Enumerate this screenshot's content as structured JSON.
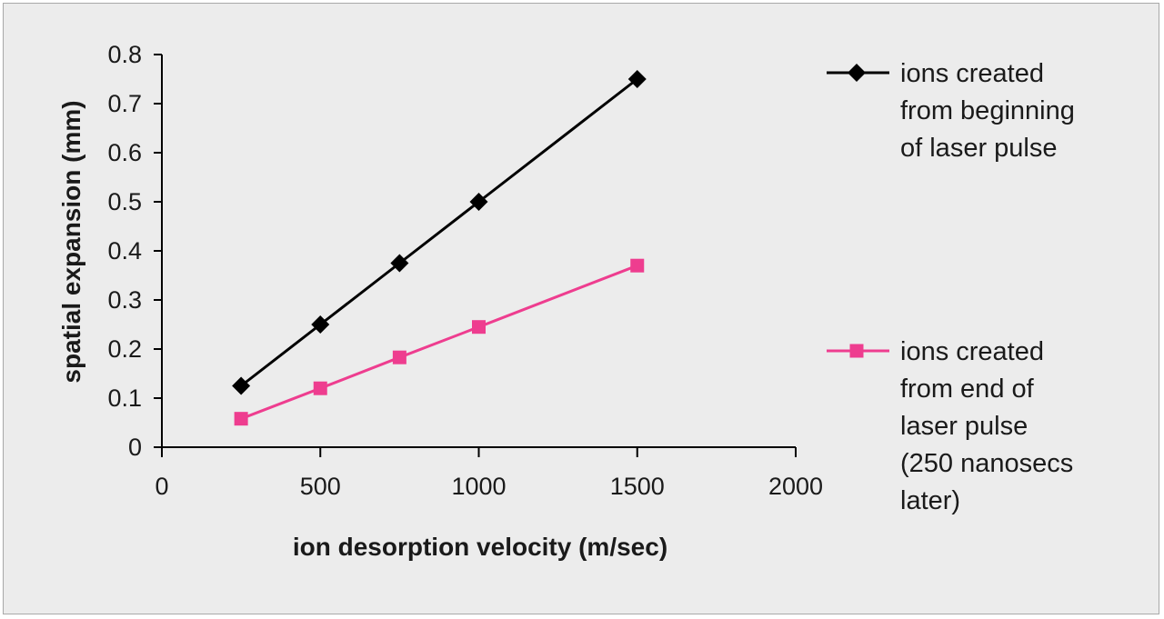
{
  "chart_data": {
    "type": "line",
    "title": "",
    "xlabel": "ion desorption velocity (m/sec)",
    "ylabel": "spatial expansion (mm)",
    "xlim": [
      0,
      2000
    ],
    "ylim": [
      0,
      0.8
    ],
    "x_ticks": [
      "0",
      "500",
      "1000",
      "1500",
      "2000"
    ],
    "y_ticks": [
      "0",
      "0.1",
      "0.2",
      "0.3",
      "0.4",
      "0.5",
      "0.6",
      "0.7",
      "0.8"
    ],
    "grid": false,
    "legend_position": "right",
    "series": [
      {
        "name": "ions created from beginning of laser pulse",
        "legend_lines": [
          "ions created",
          "from beginning",
          "of laser pulse"
        ],
        "color": "#000000",
        "marker": "diamond",
        "x": [
          250,
          500,
          750,
          1000,
          1500
        ],
        "values": [
          0.125,
          0.25,
          0.375,
          0.5,
          0.75
        ]
      },
      {
        "name": "ions created from end of laser pulse (250 nanosecs later)",
        "legend_lines": [
          "ions created",
          "from end of",
          "laser pulse",
          "(250 nanosecs",
          "later)"
        ],
        "color": "#ee3d8f",
        "marker": "square",
        "x": [
          250,
          500,
          750,
          1000,
          1500
        ],
        "values": [
          0.058,
          0.12,
          0.183,
          0.245,
          0.37
        ]
      }
    ]
  }
}
